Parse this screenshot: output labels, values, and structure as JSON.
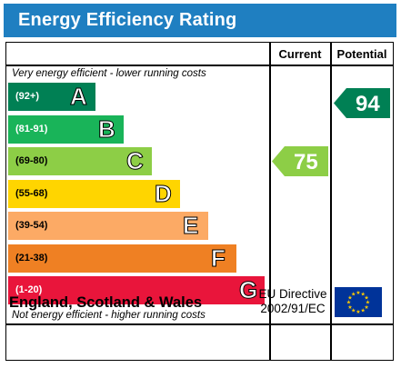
{
  "title": "Energy Efficiency Rating",
  "columns": {
    "current": "Current",
    "potential": "Potential"
  },
  "captions": {
    "top": "Very energy efficient - lower running costs",
    "bottom": "Not energy efficient - higher running costs"
  },
  "bands": [
    {
      "range": "(92+)",
      "letter": "A",
      "color": "#008054"
    },
    {
      "range": "(81-91)",
      "letter": "B",
      "color": "#19b459"
    },
    {
      "range": "(69-80)",
      "letter": "C",
      "color": "#8dce46"
    },
    {
      "range": "(55-68)",
      "letter": "D",
      "color": "#ffd500"
    },
    {
      "range": "(39-54)",
      "letter": "E",
      "color": "#fcaa65"
    },
    {
      "range": "(21-38)",
      "letter": "F",
      "color": "#ef8023"
    },
    {
      "range": "(1-20)",
      "letter": "G",
      "color": "#e9153b"
    }
  ],
  "ratings": {
    "current": {
      "value": "75",
      "color": "#8dce46",
      "band": "C"
    },
    "potential": {
      "value": "94",
      "color": "#008054",
      "band": "A"
    }
  },
  "footer": {
    "country": "England, Scotland & Wales",
    "directive_line1": "EU Directive",
    "directive_line2": "2002/91/EC"
  },
  "icons": {
    "flag": "eu-flag-icon"
  }
}
